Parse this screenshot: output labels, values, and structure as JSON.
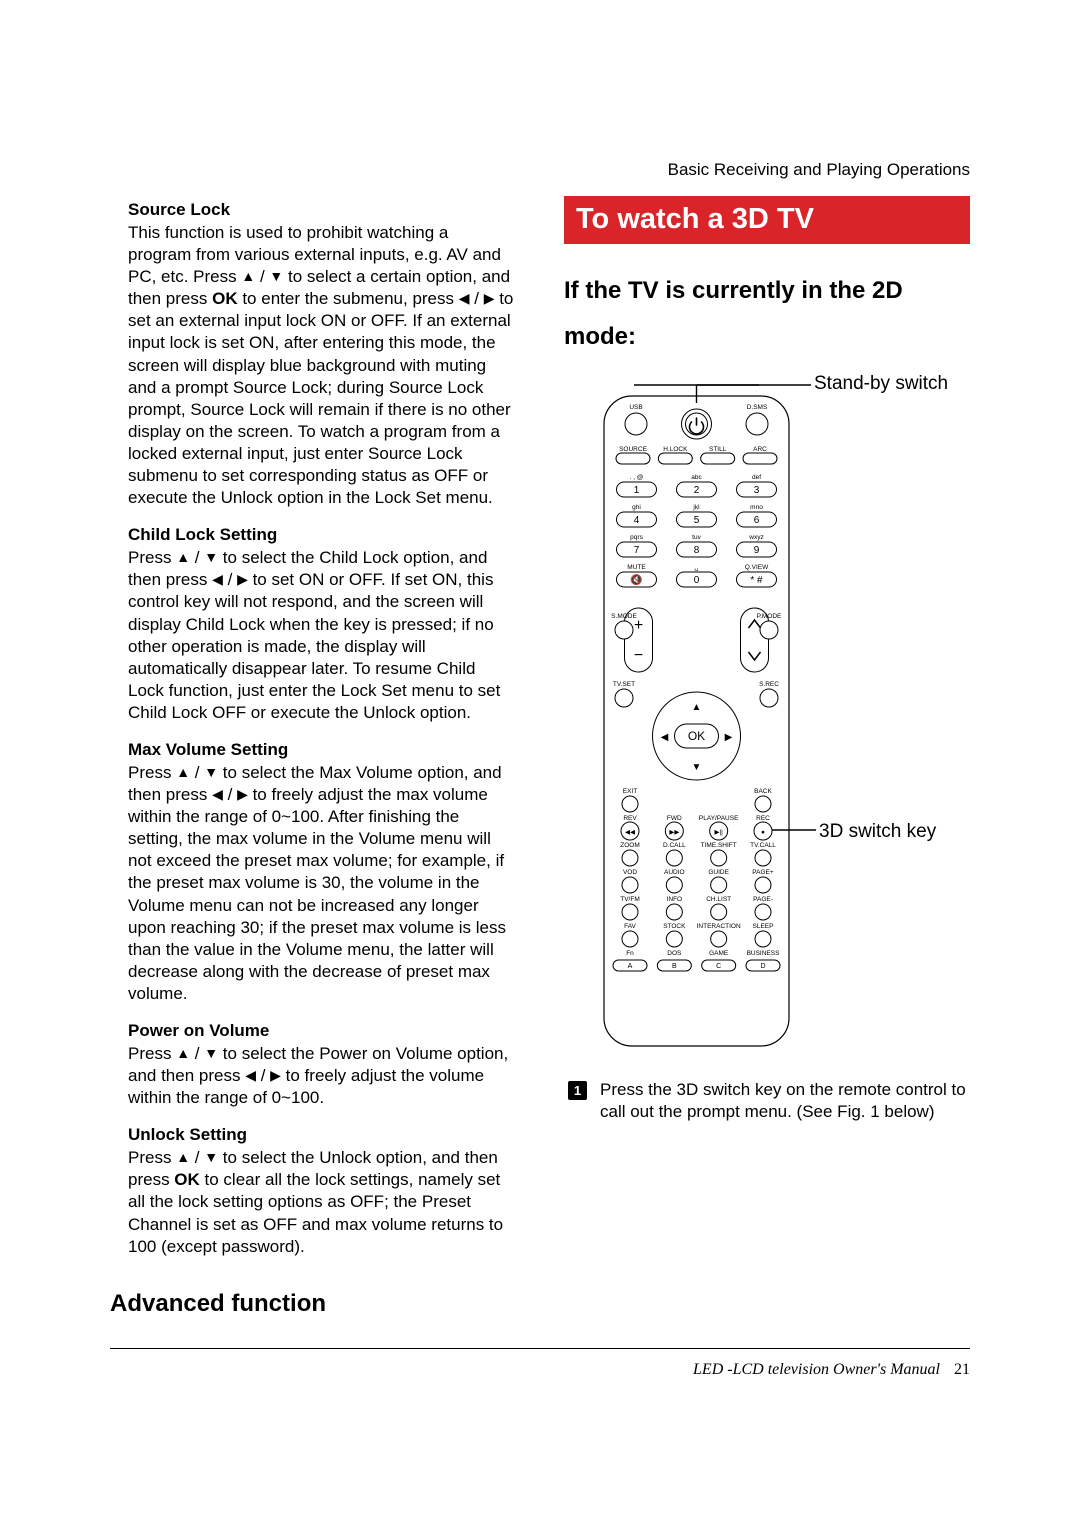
{
  "header": {
    "running": "Basic Receiving and Playing Operations"
  },
  "glyphs": {
    "up": "▲",
    "down": "▼",
    "left": "◀",
    "right": "▶",
    "sep": " / "
  },
  "left": {
    "sourceLock": {
      "title": "Source Lock",
      "p1a": "This function is used to prohibit watching a program from various external inputs, e.g. AV and PC, etc. Press ",
      "p1b": " to select a certain option, and then press ",
      "ok": "OK",
      "p1c": " to enter the submenu, press ",
      "p1d": " to set an external input lock ON or OFF. If an external input lock is set ON, after entering this mode, the screen will display blue background with muting and a prompt Source Lock; during Source Lock prompt, Source Lock will remain if there is no other display on the screen. To watch a program from a locked external input, just enter Source Lock submenu to set corresponding status as OFF or execute the Unlock option in the Lock Set menu."
    },
    "childLock": {
      "title": "Child Lock Setting",
      "pA": "Press ",
      "pB": " to select the Child Lock option, and then press ",
      "pC": " to set ON or OFF. If set ON, this control key will not respond, and the screen will display Child Lock when the key is pressed; if no other operation is made, the display will automatically disappear later. To resume Child Lock function, just enter the Lock Set menu to set Child Lock OFF or execute the Unlock option."
    },
    "maxVol": {
      "title": "Max Volume Setting",
      "pA": "Press ",
      "pB": " to select the Max Volume option, and then press ",
      "pC": " to freely adjust the max volume within the range of 0~100. After finishing the setting, the max volume in the Volume menu will not exceed the preset max volume; for example, if the preset max volume is 30, the volume in the Volume menu can not be increased any longer upon reaching 30; if the preset max volume is less than the value in the Volume menu, the latter will decrease along with the decrease of preset max volume."
    },
    "powerVol": {
      "title": "Power on Volume",
      "pA": "Press ",
      "pB": " to select the Power on Volume option, and then press ",
      "pC": " to freely adjust the volume within the range of 0~100."
    },
    "unlock": {
      "title": "Unlock Setting",
      "pA": "Press ",
      "pB": " to select the Unlock option, and then press ",
      "ok": "OK",
      "pC": " to clear all the lock settings, namely set all the lock setting options as OFF; the Preset Channel is set as OFF and max volume returns to 100 (except password)."
    },
    "advanced": "Advanced function"
  },
  "right": {
    "banner": "To watch a 3D TV",
    "subhead": "If the TV is currently in the 2D mode:",
    "callouts": {
      "standby": "Stand-by switch",
      "threeD": "3D switch key"
    },
    "remote": {
      "topRow": [
        "USB",
        "",
        "D.SMS"
      ],
      "row1": [
        "SOURCE",
        "H.LOCK",
        "STILL",
        "ARC"
      ],
      "numGroups": [
        {
          "letters": [
            ". , @",
            "abc",
            "def"
          ],
          "nums": [
            "1",
            "2",
            "3"
          ]
        },
        {
          "letters": [
            "ghi",
            "jkl",
            "mno"
          ],
          "nums": [
            "4",
            "5",
            "6"
          ]
        },
        {
          "letters": [
            "pqrs",
            "tuv",
            "wxyz"
          ],
          "nums": [
            "7",
            "8",
            "9"
          ]
        },
        {
          "letters": [
            "MUTE",
            "␣",
            "Q.VIEW"
          ],
          "nums": [
            "🔇",
            "0",
            "* #"
          ]
        }
      ],
      "midSide": [
        "S.MODE",
        "P.MODE",
        "TV.SET",
        "S.REC"
      ],
      "ok": "OK",
      "plus": "+",
      "minus": "−",
      "bottomGrid": [
        [
          "EXIT",
          "",
          "",
          "BACK"
        ],
        [
          "REV",
          "FWD",
          "PLAY/PAUSE",
          "REC"
        ],
        [
          "ZOOM",
          "D.CALL",
          "TIME.SHIFT",
          "TV.CALL"
        ],
        [
          "VOD",
          "AUDIO",
          "GUIDE",
          "PAGE+"
        ],
        [
          "TV/FM",
          "INFO",
          "CH.LIST",
          "PAGE-"
        ],
        [
          "FAV",
          "STOCK",
          "INTERACTION",
          "SLEEP"
        ],
        [
          "Fn",
          "DOS",
          "GAME",
          "BUSINESS"
        ]
      ],
      "abcd": [
        "A",
        "B",
        "C",
        "D"
      ]
    },
    "step1": "Press the 3D switch key on the remote control to call out the prompt menu. (See Fig. 1 below)"
  },
  "footer": {
    "text": "LED -LCD television Owner's Manual",
    "page": "21"
  },
  "colors": {
    "banner": "#d9252a",
    "text": "#000000",
    "bg": "#ffffff"
  }
}
